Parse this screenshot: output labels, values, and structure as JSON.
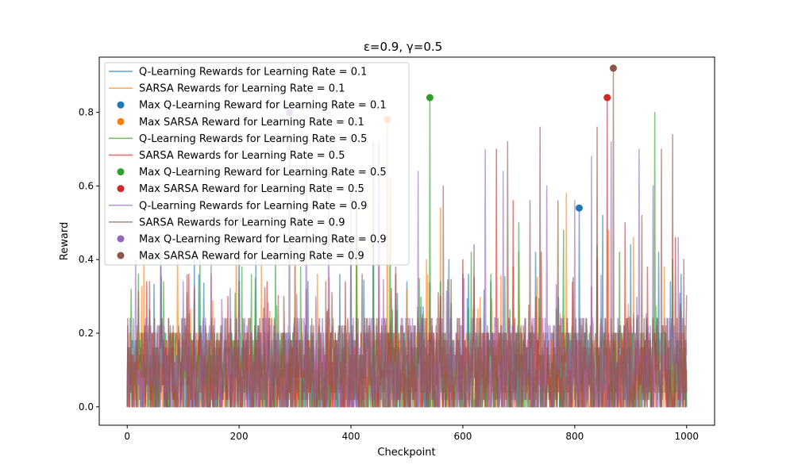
{
  "chart_data": {
    "type": "line",
    "title": "ε=0.9, γ=0.5",
    "xlabel": "Checkpoint",
    "ylabel": "Reward",
    "xlim": [
      -50,
      1050
    ],
    "ylim": [
      -0.05,
      0.95
    ],
    "x_ticks": [
      0,
      200,
      400,
      600,
      800,
      1000
    ],
    "y_ticks": [
      0.0,
      0.2,
      0.4,
      0.6,
      0.8
    ],
    "x_tick_labels": [
      "0",
      "200",
      "400",
      "600",
      "800",
      "1000"
    ],
    "y_tick_labels": [
      "0.0",
      "0.2",
      "0.4",
      "0.6",
      "0.8"
    ],
    "grid": false,
    "legend_position": "top-left",
    "x_range": [
      0,
      1000
    ],
    "series": [
      {
        "name": "Q-Learning Rewards for Learning Rate = 0.1",
        "kind": "line",
        "color": "#1f77b4",
        "noise_level": 0.1,
        "spikes": [
          [
            60,
            0.44
          ],
          [
            120,
            0.42
          ],
          [
            200,
            0.52
          ],
          [
            230,
            0.4
          ],
          [
            300,
            0.38
          ],
          [
            380,
            0.36
          ],
          [
            440,
            0.44
          ],
          [
            500,
            0.34
          ],
          [
            575,
            0.4
          ],
          [
            610,
            0.36
          ],
          [
            650,
            0.34
          ],
          [
            730,
            0.42
          ],
          [
            808,
            0.54
          ],
          [
            850,
            0.52
          ],
          [
            900,
            0.44
          ],
          [
            950,
            0.42
          ],
          [
            990,
            0.36
          ]
        ]
      },
      {
        "name": "SARSA Rewards for Learning Rate = 0.1",
        "kind": "line",
        "color": "#ff7f0e",
        "noise_level": 0.1,
        "spikes": [
          [
            30,
            0.44
          ],
          [
            90,
            0.42
          ],
          [
            150,
            0.36
          ],
          [
            195,
            0.5
          ],
          [
            240,
            0.44
          ],
          [
            300,
            0.5
          ],
          [
            340,
            0.36
          ],
          [
            410,
            0.54
          ],
          [
            450,
            0.38
          ],
          [
            465,
            0.78
          ],
          [
            500,
            0.32
          ],
          [
            535,
            0.4
          ],
          [
            560,
            0.54
          ],
          [
            600,
            0.36
          ],
          [
            690,
            0.38
          ],
          [
            700,
            0.42
          ],
          [
            785,
            0.58
          ],
          [
            860,
            0.48
          ],
          [
            905,
            0.46
          ],
          [
            960,
            0.38
          ]
        ]
      },
      {
        "name": "Max Q-Learning Reward for Learning Rate = 0.1",
        "kind": "scatter",
        "color": "#1f77b4",
        "points": [
          [
            808,
            0.54
          ]
        ]
      },
      {
        "name": "Max SARSA Reward for Learning Rate = 0.1",
        "kind": "scatter",
        "color": "#ff7f0e",
        "points": [
          [
            465,
            0.78
          ]
        ]
      },
      {
        "name": "Q-Learning Rewards for Learning Rate = 0.5",
        "kind": "line",
        "color": "#2ca02c",
        "noise_level": 0.1,
        "spikes": [
          [
            20,
            0.36
          ],
          [
            65,
            0.34
          ],
          [
            130,
            0.4
          ],
          [
            205,
            0.38
          ],
          [
            265,
            0.44
          ],
          [
            310,
            0.38
          ],
          [
            400,
            0.4
          ],
          [
            410,
            0.6
          ],
          [
            440,
            0.72
          ],
          [
            470,
            0.62
          ],
          [
            541,
            0.84
          ],
          [
            560,
            0.34
          ],
          [
            615,
            0.42
          ],
          [
            650,
            0.36
          ],
          [
            700,
            0.5
          ],
          [
            780,
            0.48
          ],
          [
            840,
            0.44
          ],
          [
            880,
            0.42
          ],
          [
            943,
            0.8
          ],
          [
            975,
            0.4
          ]
        ]
      },
      {
        "name": "SARSA Rewards for Learning Rate = 0.5",
        "kind": "line",
        "color": "#d62728",
        "noise_level": 0.1,
        "spikes": [
          [
            35,
            0.34
          ],
          [
            110,
            0.36
          ],
          [
            180,
            0.3
          ],
          [
            250,
            0.34
          ],
          [
            320,
            0.32
          ],
          [
            390,
            0.34
          ],
          [
            480,
            0.36
          ],
          [
            560,
            0.3
          ],
          [
            600,
            0.4
          ],
          [
            660,
            0.7
          ],
          [
            690,
            0.56
          ],
          [
            740,
            0.42
          ],
          [
            840,
            0.4
          ],
          [
            858,
            0.84
          ],
          [
            890,
            0.5
          ],
          [
            930,
            0.38
          ],
          [
            980,
            0.46
          ]
        ]
      },
      {
        "name": "Max Q-Learning Reward for Learning Rate = 0.5",
        "kind": "scatter",
        "color": "#2ca02c",
        "points": [
          [
            541,
            0.84
          ]
        ]
      },
      {
        "name": "Max SARSA Reward for Learning Rate = 0.5",
        "kind": "scatter",
        "color": "#d62728",
        "points": [
          [
            858,
            0.84
          ]
        ]
      },
      {
        "name": "Q-Learning Rewards for Learning Rate = 0.9",
        "kind": "line",
        "color": "#9467bd",
        "noise_level": 0.12,
        "spikes": [
          [
            15,
            0.4
          ],
          [
            60,
            0.38
          ],
          [
            100,
            0.34
          ],
          [
            150,
            0.4
          ],
          [
            290,
            0.8
          ],
          [
            320,
            0.7
          ],
          [
            360,
            0.66
          ],
          [
            400,
            0.58
          ],
          [
            450,
            0.72
          ],
          [
            520,
            0.64
          ],
          [
            600,
            0.36
          ],
          [
            640,
            0.7
          ],
          [
            672,
            0.64
          ],
          [
            750,
            0.6
          ],
          [
            800,
            0.56
          ],
          [
            830,
            0.68
          ],
          [
            865,
            0.72
          ],
          [
            915,
            0.7
          ],
          [
            940,
            0.6
          ],
          [
            985,
            0.46
          ]
        ]
      },
      {
        "name": "SARSA Rewards for Learning Rate = 0.9",
        "kind": "line",
        "color": "#8c564b",
        "noise_level": 0.12,
        "spikes": [
          [
            40,
            0.34
          ],
          [
            120,
            0.32
          ],
          [
            200,
            0.34
          ],
          [
            280,
            0.3
          ],
          [
            355,
            0.34
          ],
          [
            420,
            0.36
          ],
          [
            480,
            0.38
          ],
          [
            565,
            0.6
          ],
          [
            620,
            0.44
          ],
          [
            680,
            0.72
          ],
          [
            720,
            0.56
          ],
          [
            738,
            0.76
          ],
          [
            770,
            0.56
          ],
          [
            840,
            0.76
          ],
          [
            869,
            0.92
          ],
          [
            920,
            0.52
          ],
          [
            955,
            0.7
          ],
          [
            975,
            0.74
          ],
          [
            995,
            0.4
          ]
        ]
      },
      {
        "name": "Max Q-Learning Reward for Learning Rate = 0.9",
        "kind": "scatter",
        "color": "#9467bd",
        "points": [
          [
            290,
            0.8
          ]
        ]
      },
      {
        "name": "Max SARSA Reward for Learning Rate = 0.9",
        "kind": "scatter",
        "color": "#8c564b",
        "points": [
          [
            869,
            0.92
          ]
        ]
      }
    ]
  }
}
